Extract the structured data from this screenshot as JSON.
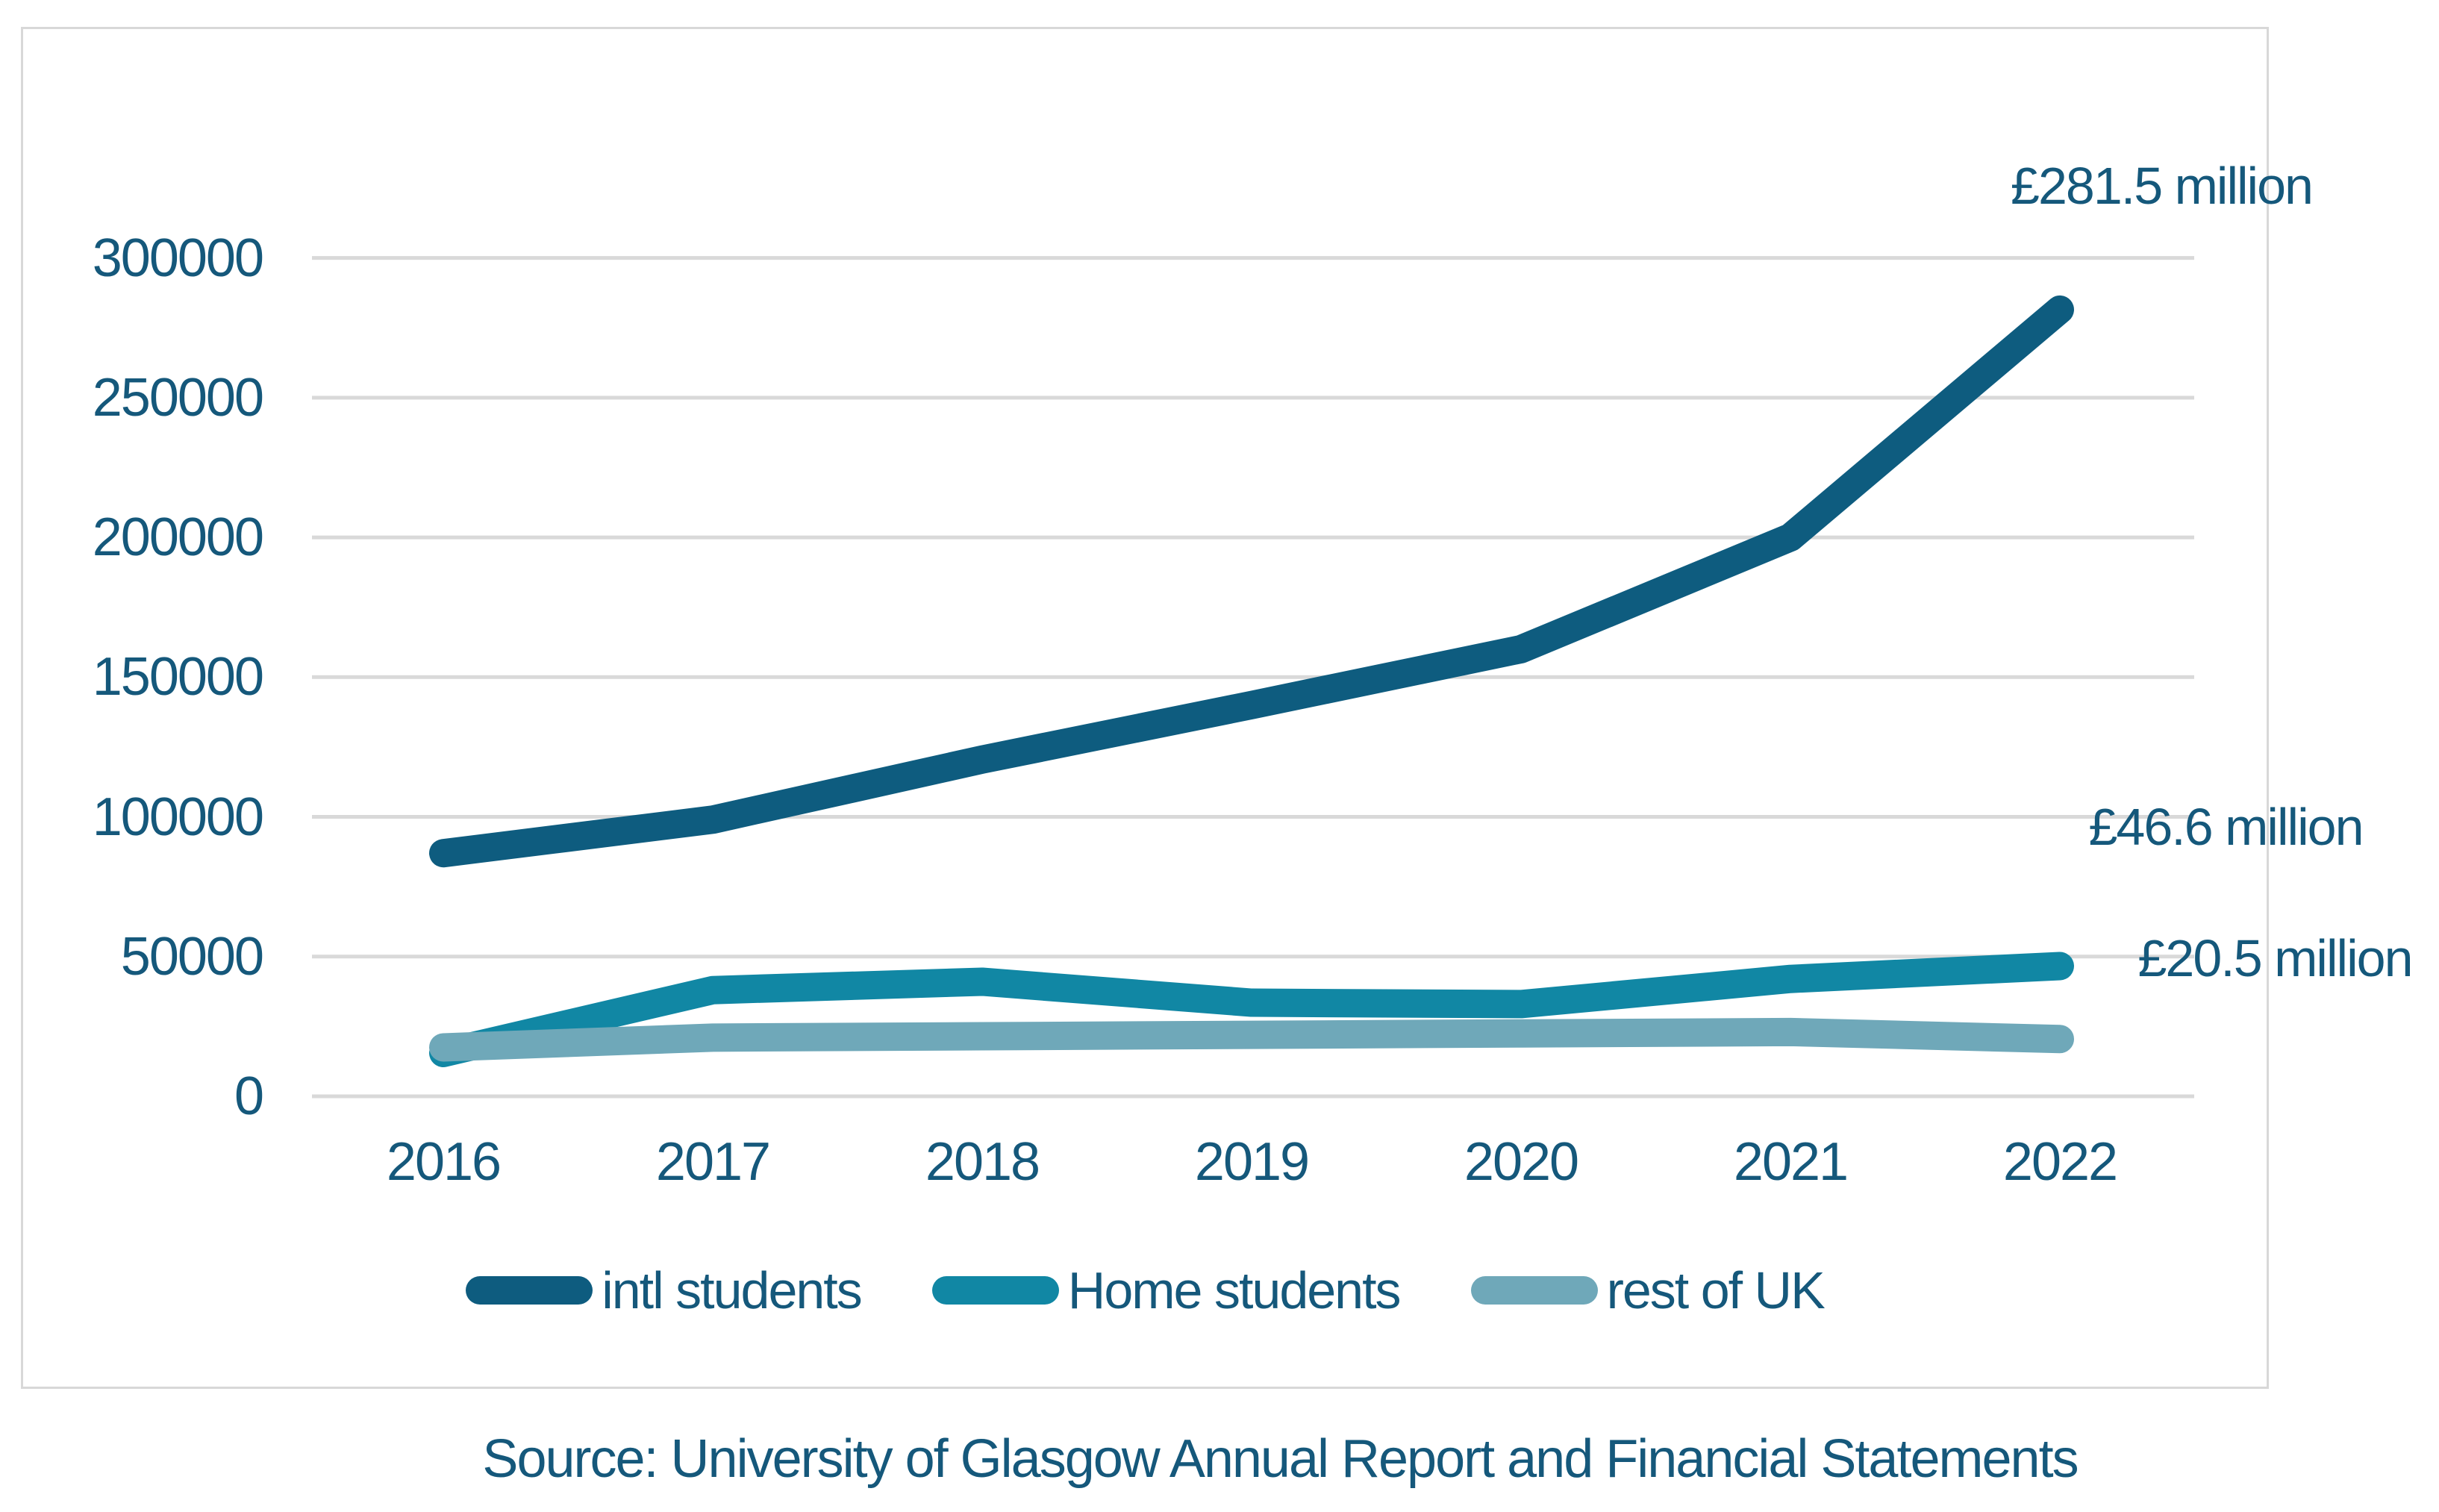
{
  "chart_data": {
    "type": "line",
    "x_labels": [
      "2016",
      "2017",
      "2018",
      "2019",
      "2020",
      "2021",
      "2022"
    ],
    "y_ticks": [
      "0",
      "50000",
      "100000",
      "150000",
      "200000",
      "250000",
      "300000"
    ],
    "ylim": [
      0,
      300000
    ],
    "grid": "horizontal-gridlines",
    "legend_position": "bottom",
    "series": [
      {
        "name": "intl students",
        "color": "#0E5C7F",
        "values": [
          87000,
          99000,
          120500,
          140000,
          160000,
          200000,
          281500
        ]
      },
      {
        "name": "Home students",
        "color": "#1187A4",
        "values": [
          15500,
          38000,
          41000,
          33500,
          33000,
          42000,
          46600
        ]
      },
      {
        "name": "rest of UK",
        "color": "#6FA8B9",
        "values": [
          17500,
          21000,
          21500,
          22000,
          22500,
          23000,
          20500
        ]
      }
    ],
    "annotations": [
      {
        "text": "£281.5 million"
      },
      {
        "text": "£46.6 million"
      },
      {
        "text": "£20.5 million"
      }
    ]
  },
  "colors": {
    "text": "#15587B",
    "gridline": "#D9D9D9",
    "frame_border": "#D8D8D8",
    "background": "#FFFFFF"
  },
  "source": {
    "text": "Source: University of Glasgow Annual Report and Financial Statements"
  }
}
